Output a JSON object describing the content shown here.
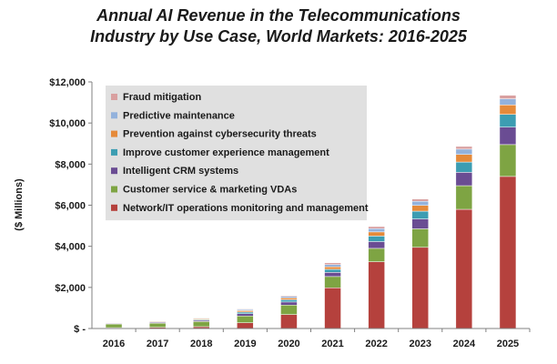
{
  "chart_data": {
    "type": "bar",
    "stacked": true,
    "title_lines": [
      "Annual AI Revenue in the Telecommunications",
      "Industry by Use Case, World Markets: 2016-2025"
    ],
    "ylabel": "($ Millions)",
    "xlabel": "",
    "ylim": [
      0,
      12000
    ],
    "y_ticks": [
      {
        "value": 0,
        "label": "$ -"
      },
      {
        "value": 2000,
        "label": "$2,000"
      },
      {
        "value": 4000,
        "label": "$4,000"
      },
      {
        "value": 6000,
        "label": "$6,000"
      },
      {
        "value": 8000,
        "label": "$8,000"
      },
      {
        "value": 10000,
        "label": "$10,000"
      },
      {
        "value": 12000,
        "label": "$12,000"
      }
    ],
    "categories": [
      "2016",
      "2017",
      "2018",
      "2019",
      "2020",
      "2021",
      "2022",
      "2023",
      "2024",
      "2025"
    ],
    "grid": false,
    "legend_position": "top-left",
    "series": [
      {
        "name": "Network/IT operations monitoring and management",
        "color": "#b5413d",
        "values": [
          40,
          60,
          90,
          280,
          680,
          1980,
          3250,
          3950,
          5800,
          7400
        ]
      },
      {
        "name": "Customer service & marketing VDAs",
        "color": "#7ea443",
        "values": [
          180,
          200,
          250,
          330,
          460,
          550,
          650,
          900,
          1150,
          1550
        ]
      },
      {
        "name": "Intelligent CRM systems",
        "color": "#6a4c93",
        "values": [
          30,
          40,
          60,
          110,
          150,
          200,
          330,
          480,
          650,
          850
        ]
      },
      {
        "name": "Improve customer experience management",
        "color": "#3c9db2",
        "values": [
          20,
          30,
          40,
          80,
          110,
          150,
          270,
          380,
          500,
          620
        ]
      },
      {
        "name": "Prevention against cybersecurity threats",
        "color": "#e58a3a",
        "values": [
          20,
          30,
          40,
          70,
          90,
          120,
          200,
          280,
          370,
          460
        ]
      },
      {
        "name": "Predictive maintenance",
        "color": "#93b2dc",
        "values": [
          15,
          20,
          30,
          50,
          70,
          110,
          160,
          200,
          260,
          300
        ]
      },
      {
        "name": "Fraud mitigation",
        "color": "#d9a0a0",
        "values": [
          10,
          15,
          20,
          30,
          40,
          90,
          100,
          110,
          130,
          170
        ]
      }
    ]
  }
}
